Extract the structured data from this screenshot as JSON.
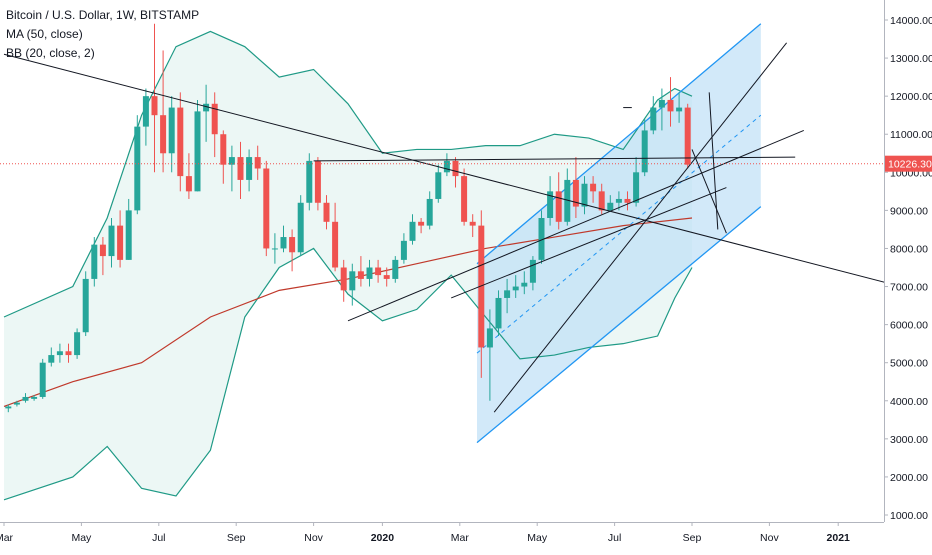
{
  "legend": {
    "symbol": "Bitcoin / U.S. Dollar, 1W, BITSTAMP",
    "ma": "MA (50, close)",
    "bb": "BB (20, close, 2)"
  },
  "price_tag": "10226.30",
  "colors": {
    "up": "#26a69a",
    "down": "#ef5350",
    "ma": "#c0392b",
    "bb_line": "#1f9a86",
    "bb_fill": "#e6f4f2",
    "channel_fill": "#bfe0f7",
    "channel_line": "#2196f3",
    "trendline": "#131722",
    "price_tag_bg": "#ef5350"
  },
  "chart_data": {
    "type": "candlestick",
    "title": "Bitcoin / U.S. Dollar, 1W, BITSTAMP",
    "y_axis": {
      "position": "right",
      "ylim": [
        800,
        14600
      ],
      "ticks": [
        "1000.00",
        "2000.00",
        "3000.00",
        "4000.00",
        "5000.00",
        "6000.00",
        "7000.00",
        "8000.00",
        "9000.00",
        "10000.00",
        "11000.00",
        "12000.00",
        "13000.00",
        "14000.00"
      ]
    },
    "x_axis": {
      "labels": [
        {
          "text": "Mar",
          "week": 0,
          "bold": false
        },
        {
          "text": "May",
          "week": 9,
          "bold": false
        },
        {
          "text": "Jul",
          "week": 18,
          "bold": false
        },
        {
          "text": "Sep",
          "week": 27,
          "bold": false
        },
        {
          "text": "Nov",
          "week": 36,
          "bold": false
        },
        {
          "text": "2020",
          "week": 44,
          "bold": true
        },
        {
          "text": "Mar",
          "week": 53,
          "bold": false
        },
        {
          "text": "May",
          "week": 62,
          "bold": false
        },
        {
          "text": "Jul",
          "week": 71,
          "bold": false
        },
        {
          "text": "Sep",
          "week": 80,
          "bold": false
        },
        {
          "text": "Nov",
          "week": 89,
          "bold": false
        },
        {
          "text": "2021",
          "week": 97,
          "bold": true
        }
      ]
    },
    "candles": [
      [
        3800,
        3850,
        3700,
        3900
      ],
      [
        3900,
        3950,
        3850,
        4000
      ],
      [
        4000,
        4100,
        3950,
        4200
      ],
      [
        4050,
        4100,
        4000,
        4150
      ],
      [
        4100,
        5000,
        4050,
        5100
      ],
      [
        5000,
        5200,
        4900,
        5400
      ],
      [
        5200,
        5300,
        5000,
        5500
      ],
      [
        5300,
        5200,
        5000,
        5500
      ],
      [
        5200,
        5800,
        5100,
        5900
      ],
      [
        5800,
        7200,
        5700,
        7400
      ],
      [
        7200,
        8100,
        7000,
        8300
      ],
      [
        8100,
        7800,
        7300,
        8300
      ],
      [
        7800,
        8600,
        7500,
        8800
      ],
      [
        8600,
        7700,
        7500,
        9000
      ],
      [
        7700,
        9000,
        7700,
        9300
      ],
      [
        9000,
        11200,
        8900,
        11500
      ],
      [
        11200,
        12000,
        10700,
        12200
      ],
      [
        12000,
        11500,
        10000,
        13900
      ],
      [
        11500,
        10500,
        10000,
        13200
      ],
      [
        10500,
        11700,
        10000,
        12000
      ],
      [
        11700,
        9900,
        9500,
        12100
      ],
      [
        9900,
        9500,
        9300,
        10500
      ],
      [
        9500,
        11600,
        9500,
        11900
      ],
      [
        11600,
        11800,
        10800,
        12300
      ],
      [
        11800,
        11000,
        10400,
        12100
      ],
      [
        11000,
        10200,
        9700,
        11100
      ],
      [
        10200,
        10400,
        9500,
        10700
      ],
      [
        10400,
        9800,
        9300,
        10800
      ],
      [
        9800,
        10400,
        9500,
        10600
      ],
      [
        10400,
        10100,
        9800,
        10700
      ],
      [
        10100,
        8000,
        7800,
        10300
      ],
      [
        8000,
        8000,
        7600,
        8400
      ],
      [
        8000,
        8300,
        7900,
        8600
      ],
      [
        8300,
        7900,
        7400,
        8500
      ],
      [
        7900,
        9200,
        7800,
        9400
      ],
      [
        9200,
        10300,
        9000,
        10500
      ],
      [
        10300,
        9200,
        9000,
        10400
      ],
      [
        9200,
        8700,
        8500,
        9400
      ],
      [
        8700,
        7500,
        7400,
        9200
      ],
      [
        7500,
        6900,
        6600,
        7700
      ],
      [
        6900,
        7400,
        6500,
        7600
      ],
      [
        7400,
        7200,
        7000,
        7800
      ],
      [
        7200,
        7500,
        7000,
        7700
      ],
      [
        7500,
        7300,
        7100,
        7700
      ],
      [
        7300,
        7200,
        7000,
        7500
      ],
      [
        7200,
        7700,
        7100,
        7800
      ],
      [
        7700,
        8200,
        7600,
        8400
      ],
      [
        8200,
        8700,
        8100,
        8900
      ],
      [
        8700,
        8600,
        8400,
        8800
      ],
      [
        8600,
        9300,
        8500,
        9500
      ],
      [
        9300,
        10000,
        9200,
        10200
      ],
      [
        10000,
        10300,
        9900,
        10500
      ],
      [
        10300,
        9900,
        9600,
        10400
      ],
      [
        9900,
        8700,
        8600,
        10100
      ],
      [
        8700,
        8600,
        8300,
        8900
      ],
      [
        8600,
        5400,
        4600,
        9000
      ],
      [
        5400,
        5900,
        4000,
        6400
      ],
      [
        5900,
        6700,
        5700,
        6900
      ],
      [
        6700,
        6900,
        6300,
        7200
      ],
      [
        6900,
        7000,
        6700,
        7300
      ],
      [
        7000,
        7100,
        6800,
        7400
      ],
      [
        7100,
        7700,
        6900,
        7800
      ],
      [
        7700,
        8800,
        7600,
        9000
      ],
      [
        8800,
        9500,
        8600,
        9900
      ],
      [
        9500,
        8700,
        8500,
        10000
      ],
      [
        8700,
        9800,
        8600,
        10100
      ],
      [
        9800,
        9100,
        8800,
        10400
      ],
      [
        9100,
        9700,
        8900,
        9900
      ],
      [
        9700,
        9500,
        9200,
        9900
      ],
      [
        9500,
        9000,
        8900,
        9700
      ],
      [
        9000,
        9200,
        9000,
        9400
      ],
      [
        9200,
        9300,
        9000,
        9500
      ],
      [
        9300,
        9200,
        9000,
        9500
      ],
      [
        9200,
        10000,
        9100,
        10400
      ],
      [
        10000,
        11100,
        9900,
        11400
      ],
      [
        11100,
        11700,
        11000,
        12000
      ],
      [
        11700,
        11900,
        11100,
        12200
      ],
      [
        11900,
        11600,
        11200,
        12500
      ],
      [
        11600,
        11700,
        11300,
        12100
      ],
      [
        11700,
        10200,
        10100,
        11800
      ]
    ],
    "ma_50": [
      [
        0,
        3850
      ],
      [
        8,
        4500
      ],
      [
        16,
        5000
      ],
      [
        24,
        6200
      ],
      [
        32,
        6900
      ],
      [
        40,
        7200
      ],
      [
        48,
        7600
      ],
      [
        56,
        8000
      ],
      [
        64,
        8300
      ],
      [
        72,
        8600
      ],
      [
        80,
        8800
      ]
    ],
    "bb_upper": [
      [
        0,
        6200
      ],
      [
        8,
        7000
      ],
      [
        12,
        8800
      ],
      [
        16,
        11500
      ],
      [
        20,
        13300
      ],
      [
        24,
        13700
      ],
      [
        28,
        13300
      ],
      [
        32,
        12500
      ],
      [
        36,
        12700
      ],
      [
        40,
        11800
      ],
      [
        44,
        10500
      ],
      [
        48,
        10600
      ],
      [
        52,
        10600
      ],
      [
        56,
        10700
      ],
      [
        60,
        10700
      ],
      [
        64,
        11000
      ],
      [
        68,
        10900
      ],
      [
        72,
        10600
      ],
      [
        76,
        11900
      ],
      [
        78,
        12200
      ],
      [
        80,
        12000
      ]
    ],
    "bb_lower": [
      [
        0,
        1400
      ],
      [
        8,
        2000
      ],
      [
        12,
        2800
      ],
      [
        16,
        1700
      ],
      [
        20,
        1500
      ],
      [
        24,
        2700
      ],
      [
        28,
        6200
      ],
      [
        32,
        7500
      ],
      [
        36,
        8000
      ],
      [
        40,
        6800
      ],
      [
        44,
        6100
      ],
      [
        48,
        6400
      ],
      [
        52,
        7300
      ],
      [
        56,
        6200
      ],
      [
        60,
        5100
      ],
      [
        64,
        5200
      ],
      [
        68,
        5400
      ],
      [
        72,
        5500
      ],
      [
        76,
        5700
      ],
      [
        78,
        6700
      ],
      [
        80,
        7500
      ]
    ],
    "annotations": {
      "price_line": 10226.3,
      "channel": {
        "lower": [
          [
            55,
            2900
          ],
          [
            88,
            9100
          ]
        ],
        "upper": [
          [
            55,
            7600
          ],
          [
            88,
            13900
          ]
        ],
        "mid": [
          [
            55,
            5250
          ],
          [
            88,
            11500
          ]
        ]
      },
      "lines": [
        [
          [
            0,
            13100
          ],
          [
            106,
            6900
          ]
        ],
        [
          [
            36,
            10300
          ],
          [
            92,
            10400
          ]
        ],
        [
          [
            40,
            6100
          ],
          [
            93,
            11100
          ]
        ],
        [
          [
            52,
            6700
          ],
          [
            84,
            9600
          ]
        ],
        [
          [
            57,
            3700
          ],
          [
            91,
            13400
          ]
        ],
        [
          [
            82,
            12100
          ],
          [
            83,
            8500
          ]
        ],
        [
          [
            80,
            10600
          ],
          [
            84,
            8400
          ]
        ],
        [
          [
            72,
            11700
          ],
          [
            73,
            11700
          ]
        ]
      ]
    }
  }
}
